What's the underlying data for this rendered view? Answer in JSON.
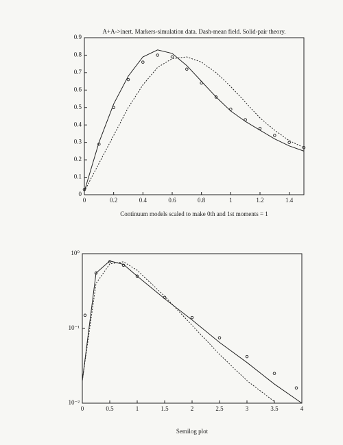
{
  "chart_data": [
    {
      "type": "line",
      "title": "A+A->inert. Markers-simulation data. Dash-mean field. Solid-pair theory.",
      "x_label": "Continuum models scaled to make 0th and 1st moments = 1",
      "xlim": [
        0,
        1.5
      ],
      "ylim": [
        0,
        0.9
      ],
      "log_y": false,
      "xticks": [
        0,
        0.2,
        0.4,
        0.6,
        0.8,
        1,
        1.2,
        1.4
      ],
      "yticks": [
        0,
        0.1,
        0.2,
        0.3,
        0.4,
        0.5,
        0.6,
        0.7,
        0.8,
        0.9
      ],
      "series": [
        {
          "style": "markers",
          "color": "#222222",
          "x": [
            0,
            0.1,
            0.2,
            0.3,
            0.4,
            0.5,
            0.6,
            0.7,
            0.8,
            0.9,
            1.0,
            1.1,
            1.2,
            1.3,
            1.4,
            1.5
          ],
          "values": [
            0.03,
            0.29,
            0.5,
            0.66,
            0.76,
            0.8,
            0.79,
            0.72,
            0.64,
            0.56,
            0.49,
            0.43,
            0.38,
            0.34,
            0.3,
            0.27
          ]
        },
        {
          "style": "dashed",
          "color": "#222222",
          "x": [
            0,
            0.1,
            0.2,
            0.3,
            0.4,
            0.5,
            0.6,
            0.7,
            0.8,
            0.9,
            1.0,
            1.1,
            1.2,
            1.3,
            1.4,
            1.5
          ],
          "values": [
            0.02,
            0.18,
            0.34,
            0.5,
            0.63,
            0.73,
            0.78,
            0.79,
            0.76,
            0.7,
            0.62,
            0.53,
            0.44,
            0.37,
            0.31,
            0.27
          ]
        },
        {
          "style": "solid",
          "color": "#222222",
          "x": [
            0,
            0.1,
            0.2,
            0.3,
            0.4,
            0.5,
            0.6,
            0.7,
            0.8,
            0.9,
            1.0,
            1.1,
            1.2,
            1.3,
            1.4,
            1.5
          ],
          "values": [
            0.02,
            0.3,
            0.52,
            0.68,
            0.79,
            0.83,
            0.81,
            0.74,
            0.65,
            0.56,
            0.48,
            0.42,
            0.37,
            0.32,
            0.28,
            0.25
          ]
        }
      ]
    },
    {
      "type": "line",
      "x_label": "Semilog plot",
      "xlim": [
        0,
        4
      ],
      "ylim": [
        0.01,
        1
      ],
      "log_y": true,
      "xticks": [
        0,
        0.5,
        1,
        1.5,
        2,
        2.5,
        3,
        3.5,
        4
      ],
      "yticks": [
        {
          "value": 0.01,
          "label": "10⁻²"
        },
        {
          "value": 0.1,
          "label": "10⁻¹"
        },
        {
          "value": 1,
          "label": "10⁰"
        }
      ],
      "series": [
        {
          "style": "markers",
          "color": "#222222",
          "x": [
            0.05,
            0.25,
            0.5,
            0.75,
            1,
            1.5,
            2,
            2.5,
            3,
            3.5,
            3.9
          ],
          "values": [
            0.15,
            0.55,
            0.78,
            0.7,
            0.5,
            0.26,
            0.14,
            0.075,
            0.042,
            0.025,
            0.016
          ]
        },
        {
          "style": "dashed",
          "color": "#222222",
          "x": [
            0,
            0.25,
            0.5,
            0.75,
            1,
            1.5,
            2,
            2.5,
            3,
            3.5
          ],
          "values": [
            0.02,
            0.4,
            0.73,
            0.78,
            0.6,
            0.27,
            0.11,
            0.045,
            0.02,
            0.0105
          ]
        },
        {
          "style": "solid",
          "color": "#222222",
          "x": [
            0,
            0.25,
            0.5,
            0.75,
            1,
            1.5,
            2,
            2.5,
            3,
            3.5,
            4
          ],
          "values": [
            0.02,
            0.55,
            0.8,
            0.72,
            0.5,
            0.25,
            0.13,
            0.065,
            0.035,
            0.018,
            0.01
          ]
        }
      ]
    }
  ]
}
